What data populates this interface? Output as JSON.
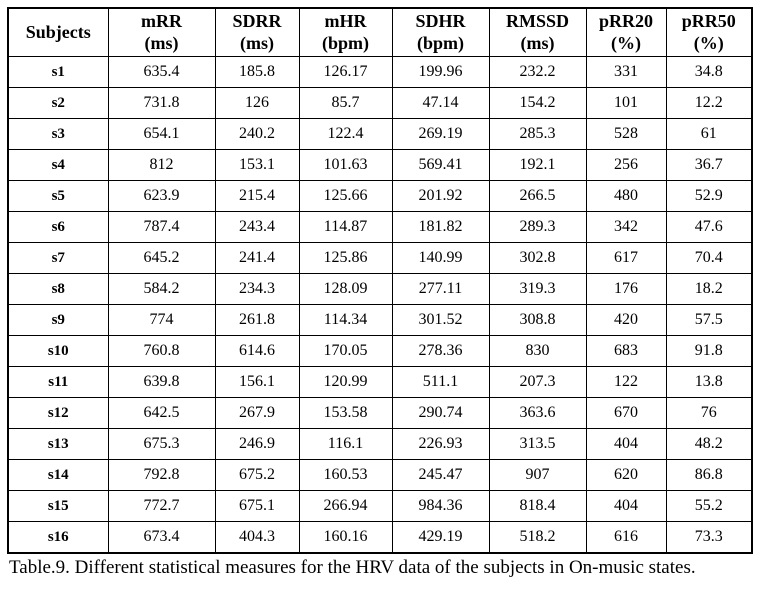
{
  "table": {
    "columns": [
      {
        "label": "Subjects",
        "unit": ""
      },
      {
        "label": "mRR",
        "unit": "(ms)"
      },
      {
        "label": "SDRR",
        "unit": "(ms)"
      },
      {
        "label": "mHR",
        "unit": "(bpm)"
      },
      {
        "label": "SDHR",
        "unit": "(bpm)"
      },
      {
        "label": "RMSSD",
        "unit": "(ms)"
      },
      {
        "label": "pRR20",
        "unit": "(%)"
      },
      {
        "label": "pRR50",
        "unit": "(%)"
      }
    ],
    "rows": [
      {
        "subject": "s1",
        "values": [
          "635.4",
          "185.8",
          "126.17",
          "199.96",
          "232.2",
          "331",
          "34.8"
        ]
      },
      {
        "subject": "s2",
        "values": [
          "731.8",
          "126",
          "85.7",
          "47.14",
          "154.2",
          "101",
          "12.2"
        ]
      },
      {
        "subject": "s3",
        "values": [
          "654.1",
          "240.2",
          "122.4",
          "269.19",
          "285.3",
          "528",
          "61"
        ]
      },
      {
        "subject": "s4",
        "values": [
          "812",
          "153.1",
          "101.63",
          "569.41",
          "192.1",
          "256",
          "36.7"
        ]
      },
      {
        "subject": "s5",
        "values": [
          "623.9",
          "215.4",
          "125.66",
          "201.92",
          "266.5",
          "480",
          "52.9"
        ]
      },
      {
        "subject": "s6",
        "values": [
          "787.4",
          "243.4",
          "114.87",
          "181.82",
          "289.3",
          "342",
          "47.6"
        ]
      },
      {
        "subject": "s7",
        "values": [
          "645.2",
          "241.4",
          "125.86",
          "140.99",
          "302.8",
          "617",
          "70.4"
        ]
      },
      {
        "subject": "s8",
        "values": [
          "584.2",
          "234.3",
          "128.09",
          "277.11",
          "319.3",
          "176",
          "18.2"
        ]
      },
      {
        "subject": "s9",
        "values": [
          "774",
          "261.8",
          "114.34",
          "301.52",
          "308.8",
          "420",
          "57.5"
        ]
      },
      {
        "subject": "s10",
        "values": [
          "760.8",
          "614.6",
          "170.05",
          "278.36",
          "830",
          "683",
          "91.8"
        ]
      },
      {
        "subject": "s11",
        "values": [
          "639.8",
          "156.1",
          "120.99",
          "511.1",
          "207.3",
          "122",
          "13.8"
        ]
      },
      {
        "subject": "s12",
        "values": [
          "642.5",
          "267.9",
          "153.58",
          "290.74",
          "363.6",
          "670",
          "76"
        ]
      },
      {
        "subject": "s13",
        "values": [
          "675.3",
          "246.9",
          "116.1",
          "226.93",
          "313.5",
          "404",
          "48.2"
        ]
      },
      {
        "subject": "s14",
        "values": [
          "792.8",
          "675.2",
          "160.53",
          "245.47",
          "907",
          "620",
          "86.8"
        ]
      },
      {
        "subject": "s15",
        "values": [
          "772.7",
          "675.1",
          "266.94",
          "984.36",
          "818.4",
          "404",
          "55.2"
        ]
      },
      {
        "subject": "s16",
        "values": [
          "673.4",
          "404.3",
          "160.16",
          "429.19",
          "518.2",
          "616",
          "73.3"
        ]
      }
    ]
  },
  "caption": "Table.9. Different statistical measures for the HRV data of the subjects in On-music states."
}
